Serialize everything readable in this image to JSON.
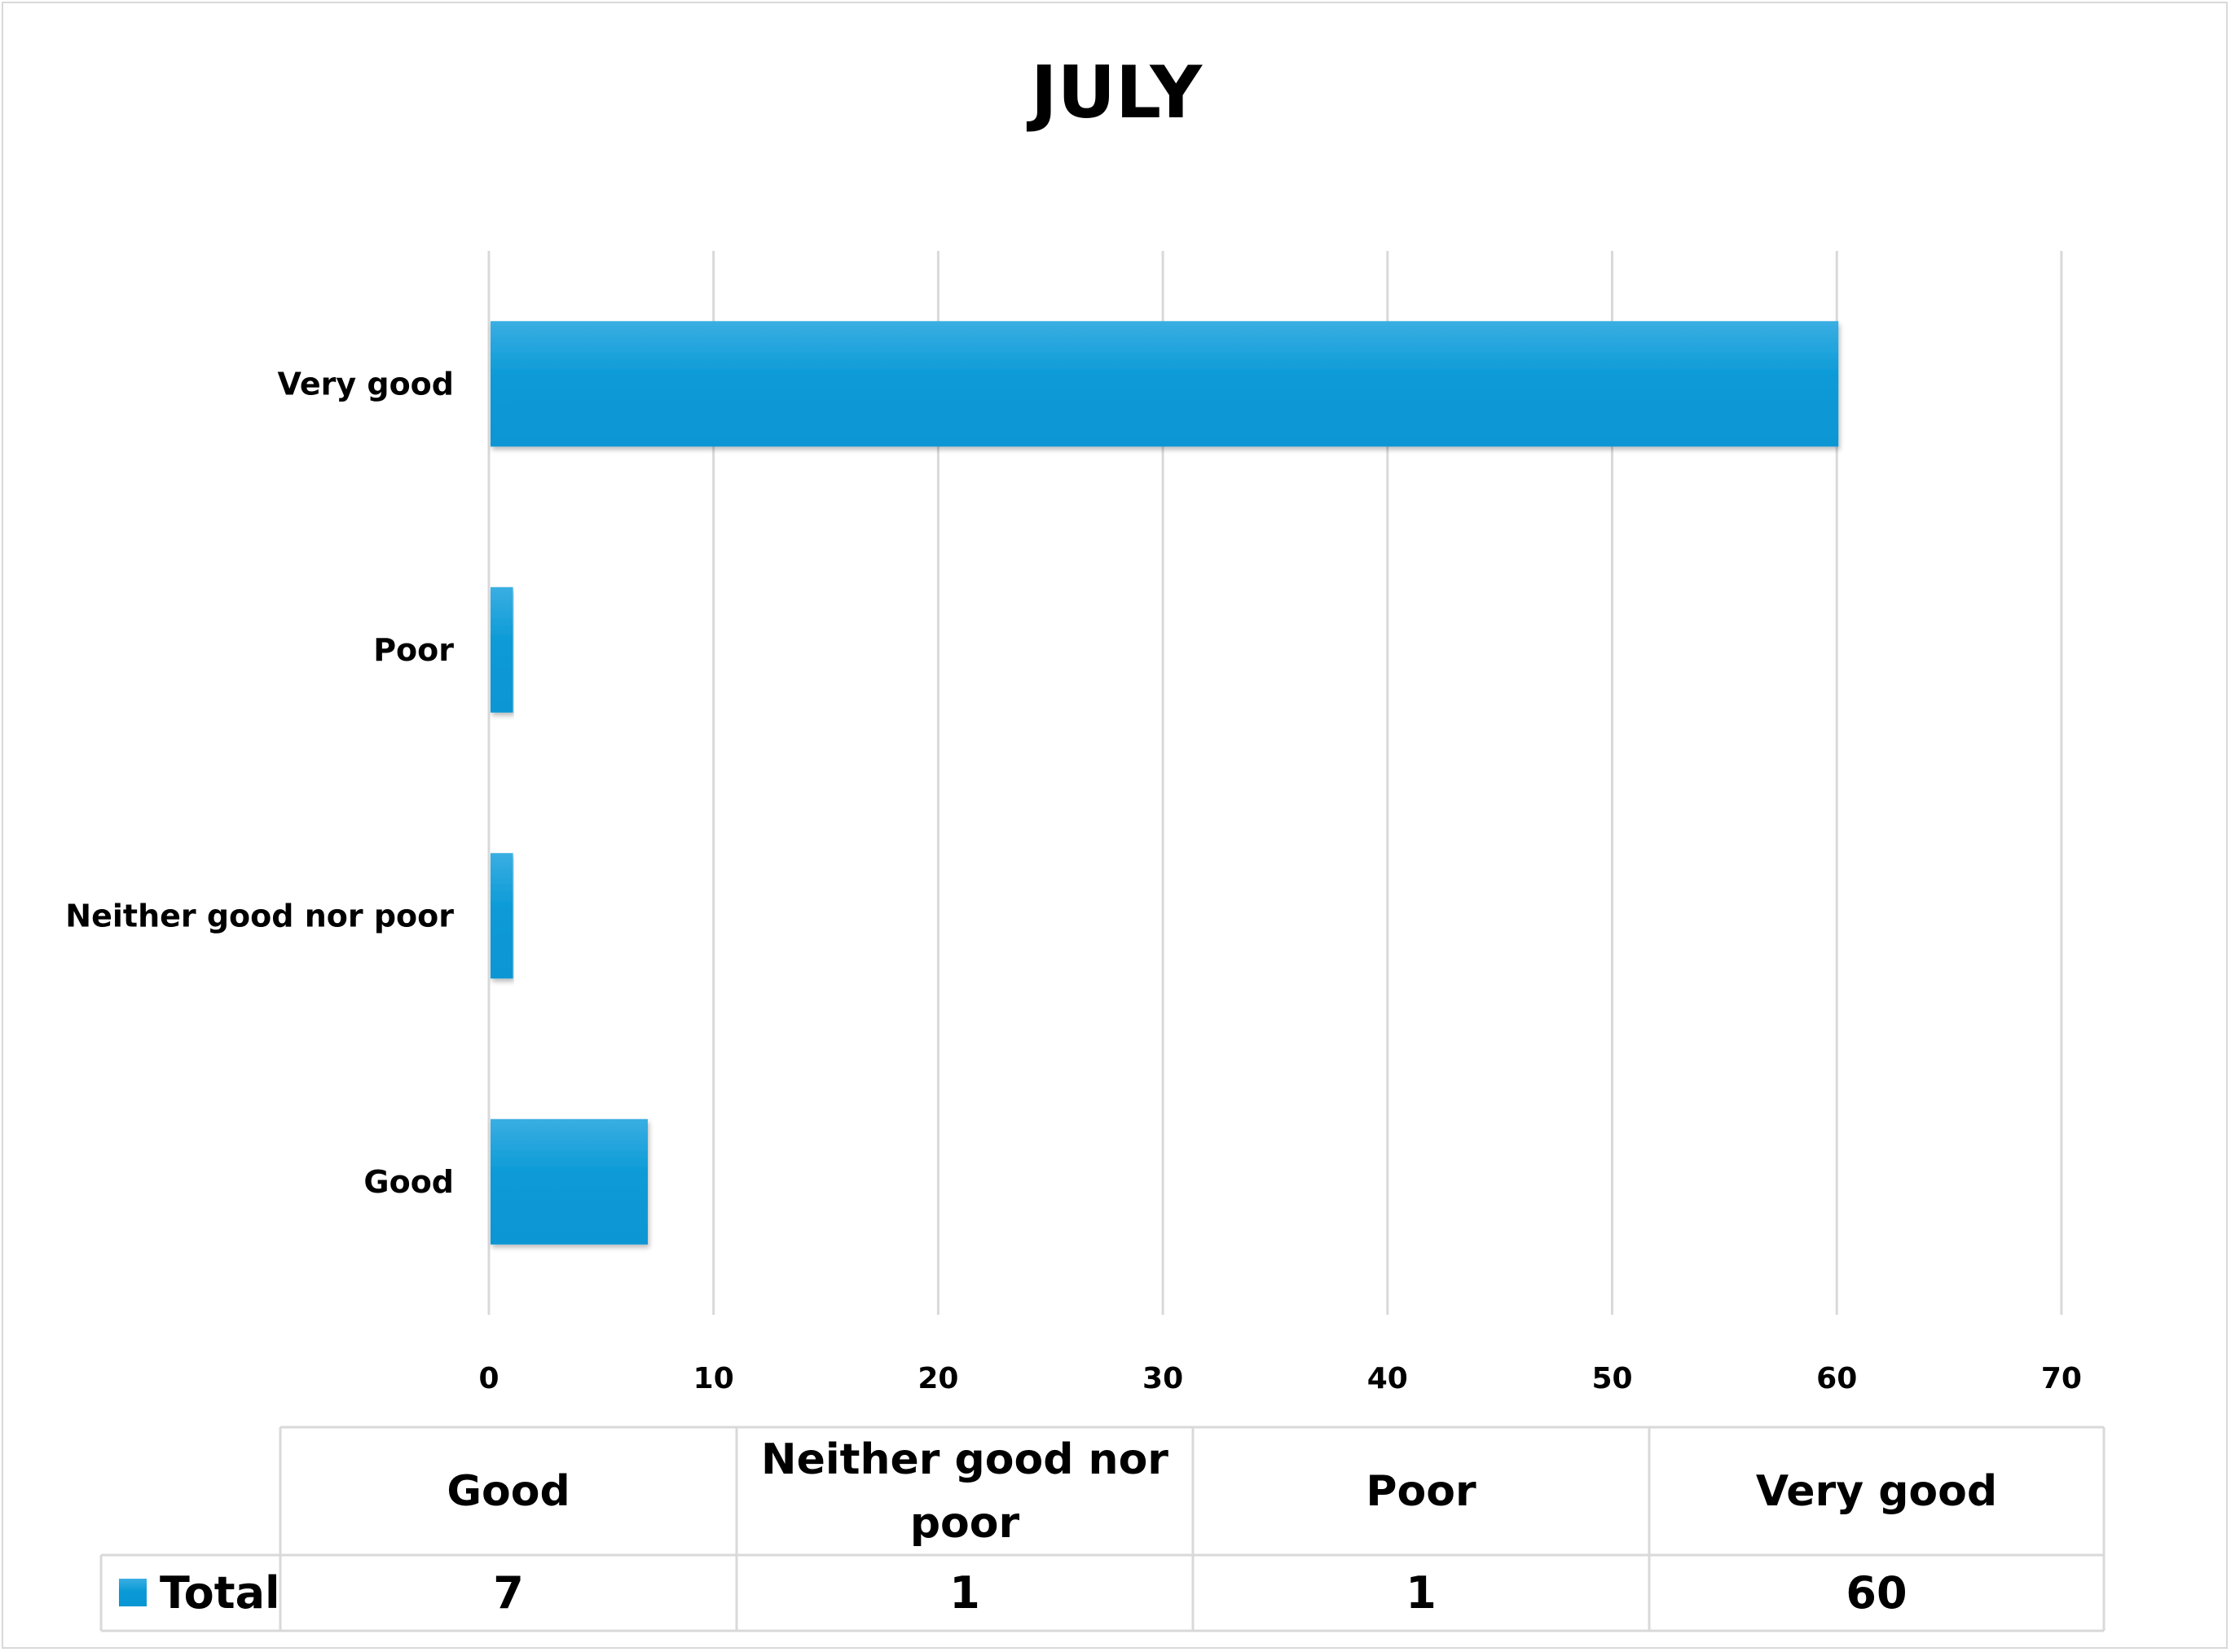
{
  "chart_data": {
    "type": "bar",
    "orientation": "horizontal",
    "title": "JULY",
    "categories": [
      "Good",
      "Neither good nor poor",
      "Poor",
      "Very good"
    ],
    "series": [
      {
        "name": "Total",
        "values": [
          7,
          1,
          1,
          60
        ]
      }
    ],
    "xlim": [
      0,
      70
    ],
    "x_ticks": [
      0,
      10,
      20,
      30,
      40,
      50,
      60,
      70
    ],
    "grid": true,
    "legend": "data-table",
    "data_table": {
      "headers": [
        "Good",
        "Neither good nor poor",
        "Poor",
        "Very good"
      ],
      "row_label": "Total",
      "values": [
        7,
        1,
        1,
        60
      ]
    },
    "colors": {
      "bar": "#0a9ad6",
      "bar_light": "#3aaee2",
      "grid": "#d9d9d9"
    }
  }
}
